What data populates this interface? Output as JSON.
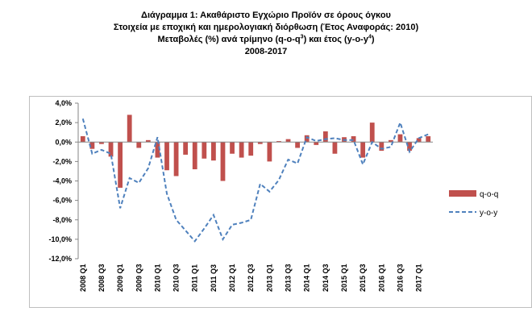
{
  "chart_data": {
    "type": "bar",
    "title": "Διάγραμμα 1: Ακαθάριστο Εγχώριο Προϊόν σε όρους όγκου",
    "subtitle_1": "Στοιχεία με εποχική και ημερολογιακή διόρθωση (Έτος Αναφοράς: 2010)",
    "subtitle_2_pre": "Μεταβολές (%) ανά τρίμηνο (q-o-q",
    "subtitle_2_sup1": "3",
    "subtitle_2_mid": ") και έτος (y-o-y",
    "subtitle_2_sup2": "4",
    "subtitle_2_post": ")",
    "subtitle_3": "2008-2017",
    "ylim": [
      -12,
      4
    ],
    "y_ticks": [
      "4,0%",
      "2,0%",
      "0,0%",
      "-2,0%",
      "-4,0%",
      "-6,0%",
      "-8,0%",
      "-10,0%",
      "-12,0%"
    ],
    "y_tick_values": [
      4,
      2,
      0,
      -2,
      -4,
      -6,
      -8,
      -10,
      -12
    ],
    "x_tick_labels": [
      "2008 Q1",
      "2008 Q3",
      "2009 Q1",
      "2009 Q3",
      "2010 Q1",
      "2010 Q3",
      "2011 Q1",
      "2011 Q3",
      "2012 Q1",
      "2012 Q3",
      "2013 Q1",
      "2013 Q3",
      "2014 Q1",
      "2014 Q3",
      "2015 Q1",
      "2015 Q3",
      "2016 Q1",
      "2016 Q3",
      "2017 Q1"
    ],
    "categories": [
      "2008 Q1",
      "2008 Q2",
      "2008 Q3",
      "2008 Q4",
      "2009 Q1",
      "2009 Q2",
      "2009 Q3",
      "2009 Q4",
      "2010 Q1",
      "2010 Q2",
      "2010 Q3",
      "2010 Q4",
      "2011 Q1",
      "2011 Q2",
      "2011 Q3",
      "2011 Q4",
      "2012 Q1",
      "2012 Q2",
      "2012 Q3",
      "2012 Q4",
      "2013 Q1",
      "2013 Q2",
      "2013 Q3",
      "2013 Q4",
      "2014 Q1",
      "2014 Q2",
      "2014 Q3",
      "2014 Q4",
      "2015 Q1",
      "2015 Q2",
      "2015 Q3",
      "2015 Q4",
      "2016 Q1",
      "2016 Q2",
      "2016 Q3",
      "2016 Q4",
      "2017 Q1",
      "2017 Q2"
    ],
    "series": [
      {
        "name": "q-o-q",
        "type": "bar",
        "color": "#c0504d",
        "values": [
          0.6,
          -0.7,
          -0.2,
          -1.5,
          -4.7,
          2.8,
          -0.6,
          0.2,
          -1.6,
          -2.9,
          -3.5,
          -1.3,
          -2.8,
          -1.7,
          -1.9,
          -4.0,
          -1.2,
          -1.6,
          -1.4,
          -0.2,
          -2.0,
          0.1,
          0.3,
          -0.6,
          0.7,
          -0.3,
          1.1,
          -1.2,
          0.5,
          0.6,
          -1.6,
          2.0,
          -0.9,
          0.2,
          0.8,
          -0.9,
          0.4,
          0.6
        ]
      },
      {
        "name": "y-o-y",
        "type": "line",
        "color": "#4f81bd",
        "values": [
          2.4,
          -1.2,
          -0.8,
          -1.2,
          -6.8,
          -3.7,
          -4.2,
          -2.7,
          0.5,
          -5.3,
          -8.0,
          -9.1,
          -10.2,
          -8.9,
          -7.5,
          -10.0,
          -8.5,
          -8.3,
          -8.0,
          -4.3,
          -5.1,
          -3.9,
          -1.8,
          -2.2,
          0.5,
          0.1,
          0.3,
          0.4,
          0.2,
          0.2,
          -2.3,
          0.0,
          -0.7,
          -0.5,
          2.0,
          -1.0,
          0.4,
          0.8
        ]
      }
    ],
    "legend_position": "right",
    "grid": false
  }
}
